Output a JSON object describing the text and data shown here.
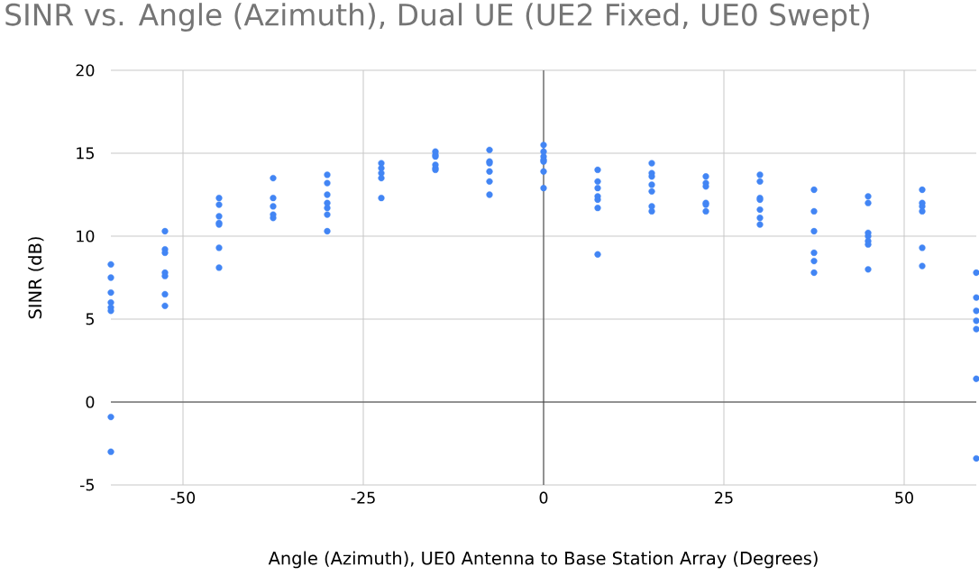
{
  "chart_data": {
    "type": "scatter",
    "title": "SINR vs. Angle (Azimuth), Dual UE (UE2 Fixed, UE0 Swept)",
    "xlabel": "Angle (Azimuth), UE0 Antenna to Base Station Array (Degrees)",
    "ylabel": "SINR (dB)",
    "x": [
      -60,
      -60,
      -60,
      -60,
      -60,
      -60,
      -60,
      -60,
      -52.5,
      -52.5,
      -52.5,
      -52.5,
      -52.5,
      -52.5,
      -52.5,
      -45,
      -45,
      -45,
      -45,
      -45,
      -45,
      -45,
      -37.5,
      -37.5,
      -37.5,
      -37.5,
      -37.5,
      -30,
      -30,
      -30,
      -30,
      -30,
      -30,
      -30,
      -22.5,
      -22.5,
      -22.5,
      -22.5,
      -22.5,
      -15,
      -15,
      -15,
      -15,
      -15,
      -15,
      -7.5,
      -7.5,
      -7.5,
      -7.5,
      -7.5,
      -7.5,
      0,
      0,
      0,
      0,
      0,
      0,
      0,
      7.5,
      7.5,
      7.5,
      7.5,
      7.5,
      7.5,
      7.5,
      15,
      15,
      15,
      15,
      15,
      15,
      15,
      22.5,
      22.5,
      22.5,
      22.5,
      22.5,
      22.5,
      30,
      30,
      30,
      30,
      30,
      30,
      30,
      37.5,
      37.5,
      37.5,
      37.5,
      37.5,
      37.5,
      45,
      45,
      45,
      45,
      45,
      45,
      45,
      52.5,
      52.5,
      52.5,
      52.5,
      52.5,
      52.5,
      60,
      60,
      60,
      60,
      60,
      60,
      60
    ],
    "values": [
      8.3,
      7.5,
      6.6,
      6.0,
      5.7,
      5.5,
      -0.9,
      -3.0,
      10.3,
      9.2,
      9.0,
      7.8,
      7.6,
      6.5,
      5.8,
      12.3,
      11.9,
      11.2,
      10.8,
      10.7,
      9.3,
      8.1,
      13.5,
      12.3,
      11.8,
      11.3,
      11.1,
      13.7,
      13.2,
      12.5,
      12.0,
      11.7,
      11.3,
      10.3,
      14.4,
      14.1,
      13.8,
      13.5,
      12.3,
      15.1,
      14.9,
      14.8,
      14.3,
      14.1,
      14.0,
      15.2,
      14.5,
      14.4,
      13.9,
      13.3,
      12.5,
      15.5,
      15.1,
      14.8,
      14.6,
      14.5,
      13.9,
      12.9,
      14.0,
      13.3,
      12.9,
      12.4,
      12.2,
      11.7,
      8.9,
      14.4,
      13.8,
      13.6,
      13.1,
      12.7,
      11.8,
      11.5,
      13.6,
      13.2,
      13.0,
      12.0,
      11.9,
      11.5,
      13.7,
      13.3,
      12.3,
      12.2,
      11.6,
      11.1,
      10.7,
      12.8,
      11.5,
      10.3,
      9.0,
      8.5,
      7.8,
      12.4,
      12.0,
      10.2,
      10.0,
      9.7,
      9.5,
      8.0,
      12.8,
      12.0,
      11.8,
      11.5,
      9.3,
      8.2,
      7.8,
      6.3,
      5.5,
      4.9,
      4.4,
      1.4,
      -3.4
    ],
    "color": "#4285f4",
    "marker": "circle",
    "xlim": [
      -60,
      60
    ],
    "ylim": [
      -5,
      20
    ],
    "xticks": [
      -50,
      -25,
      0,
      25,
      50
    ],
    "yticks": [
      -5,
      0,
      5,
      10,
      15,
      20
    ],
    "grid": true
  }
}
